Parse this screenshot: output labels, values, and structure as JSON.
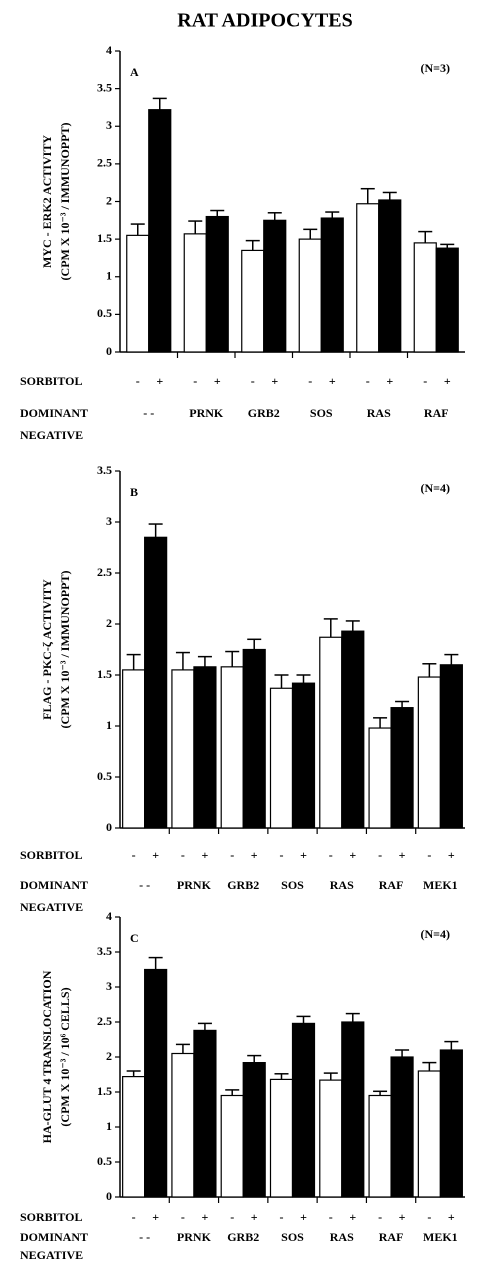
{
  "title": "RAT ADIPOCYTES",
  "chart_data": [
    {
      "type": "bar",
      "panel": "A",
      "annotation": "(N=3)",
      "ylabel": [
        "MYC - ERK2  ACTIVITY",
        "(CPM X 10⁻³ / IMMUNOPPT)"
      ],
      "row_labels": [
        "SORBITOL",
        "DOMINANT",
        "NEGATIVE"
      ],
      "categories": [
        "- -",
        "PRNK",
        "GRB2",
        "SOS",
        "RAS",
        "RAF"
      ],
      "series": [
        {
          "name": "-",
          "color": "#ffffff",
          "values": [
            1.55,
            1.57,
            1.35,
            1.5,
            1.97,
            1.45
          ],
          "errors": [
            0.15,
            0.17,
            0.13,
            0.13,
            0.2,
            0.15
          ]
        },
        {
          "name": "+",
          "color": "#000000",
          "values": [
            3.22,
            1.8,
            1.75,
            1.78,
            2.02,
            1.38
          ],
          "errors": [
            0.15,
            0.08,
            0.1,
            0.08,
            0.1,
            0.05
          ]
        }
      ],
      "ylim": [
        0,
        4
      ],
      "yticks": [
        0,
        0.5,
        1,
        1.5,
        2,
        2.5,
        3,
        3.5,
        4
      ]
    },
    {
      "type": "bar",
      "panel": "B",
      "annotation": "(N=4)",
      "ylabel": [
        "FLAG - PKC-ζ  ACTIVITY",
        "(CPM X 10⁻³ / IMMUNOPPT)"
      ],
      "row_labels": [
        "SORBITOL",
        "DOMINANT",
        "NEGATIVE"
      ],
      "categories": [
        "- -",
        "PRNK",
        "GRB2",
        "SOS",
        "RAS",
        "RAF",
        "MEK1"
      ],
      "series": [
        {
          "name": "-",
          "color": "#ffffff",
          "values": [
            1.55,
            1.55,
            1.58,
            1.37,
            1.87,
            0.98,
            1.48
          ],
          "errors": [
            0.15,
            0.17,
            0.15,
            0.13,
            0.18,
            0.1,
            0.13
          ]
        },
        {
          "name": "+",
          "color": "#000000",
          "values": [
            2.85,
            1.58,
            1.75,
            1.42,
            1.93,
            1.18,
            1.6
          ],
          "errors": [
            0.13,
            0.1,
            0.1,
            0.08,
            0.1,
            0.06,
            0.1
          ]
        }
      ],
      "ylim": [
        0,
        3.5
      ],
      "yticks": [
        0,
        0.5,
        1,
        1.5,
        2,
        2.5,
        3,
        3.5
      ]
    },
    {
      "type": "bar",
      "panel": "C",
      "annotation": "(N=4)",
      "ylabel": [
        "HA-GLUT 4  TRANSLOCATION",
        "(CPM X 10⁻³ / 10⁶ CELLS)"
      ],
      "row_labels": [
        "SORBITOL",
        "DOMINANT",
        "NEGATIVE"
      ],
      "categories": [
        "- -",
        "PRNK",
        "GRB2",
        "SOS",
        "RAS",
        "RAF",
        "MEK1"
      ],
      "series": [
        {
          "name": "-",
          "color": "#ffffff",
          "values": [
            1.72,
            2.05,
            1.45,
            1.68,
            1.67,
            1.45,
            1.8
          ],
          "errors": [
            0.08,
            0.13,
            0.08,
            0.08,
            0.1,
            0.06,
            0.12
          ]
        },
        {
          "name": "+",
          "color": "#000000",
          "values": [
            3.25,
            2.38,
            1.92,
            2.48,
            2.5,
            2.0,
            2.1
          ],
          "errors": [
            0.17,
            0.1,
            0.1,
            0.1,
            0.12,
            0.1,
            0.12
          ]
        }
      ],
      "ylim": [
        0,
        4
      ],
      "yticks": [
        0,
        0.5,
        1,
        1.5,
        2,
        2.5,
        3,
        3.5,
        4
      ]
    }
  ]
}
